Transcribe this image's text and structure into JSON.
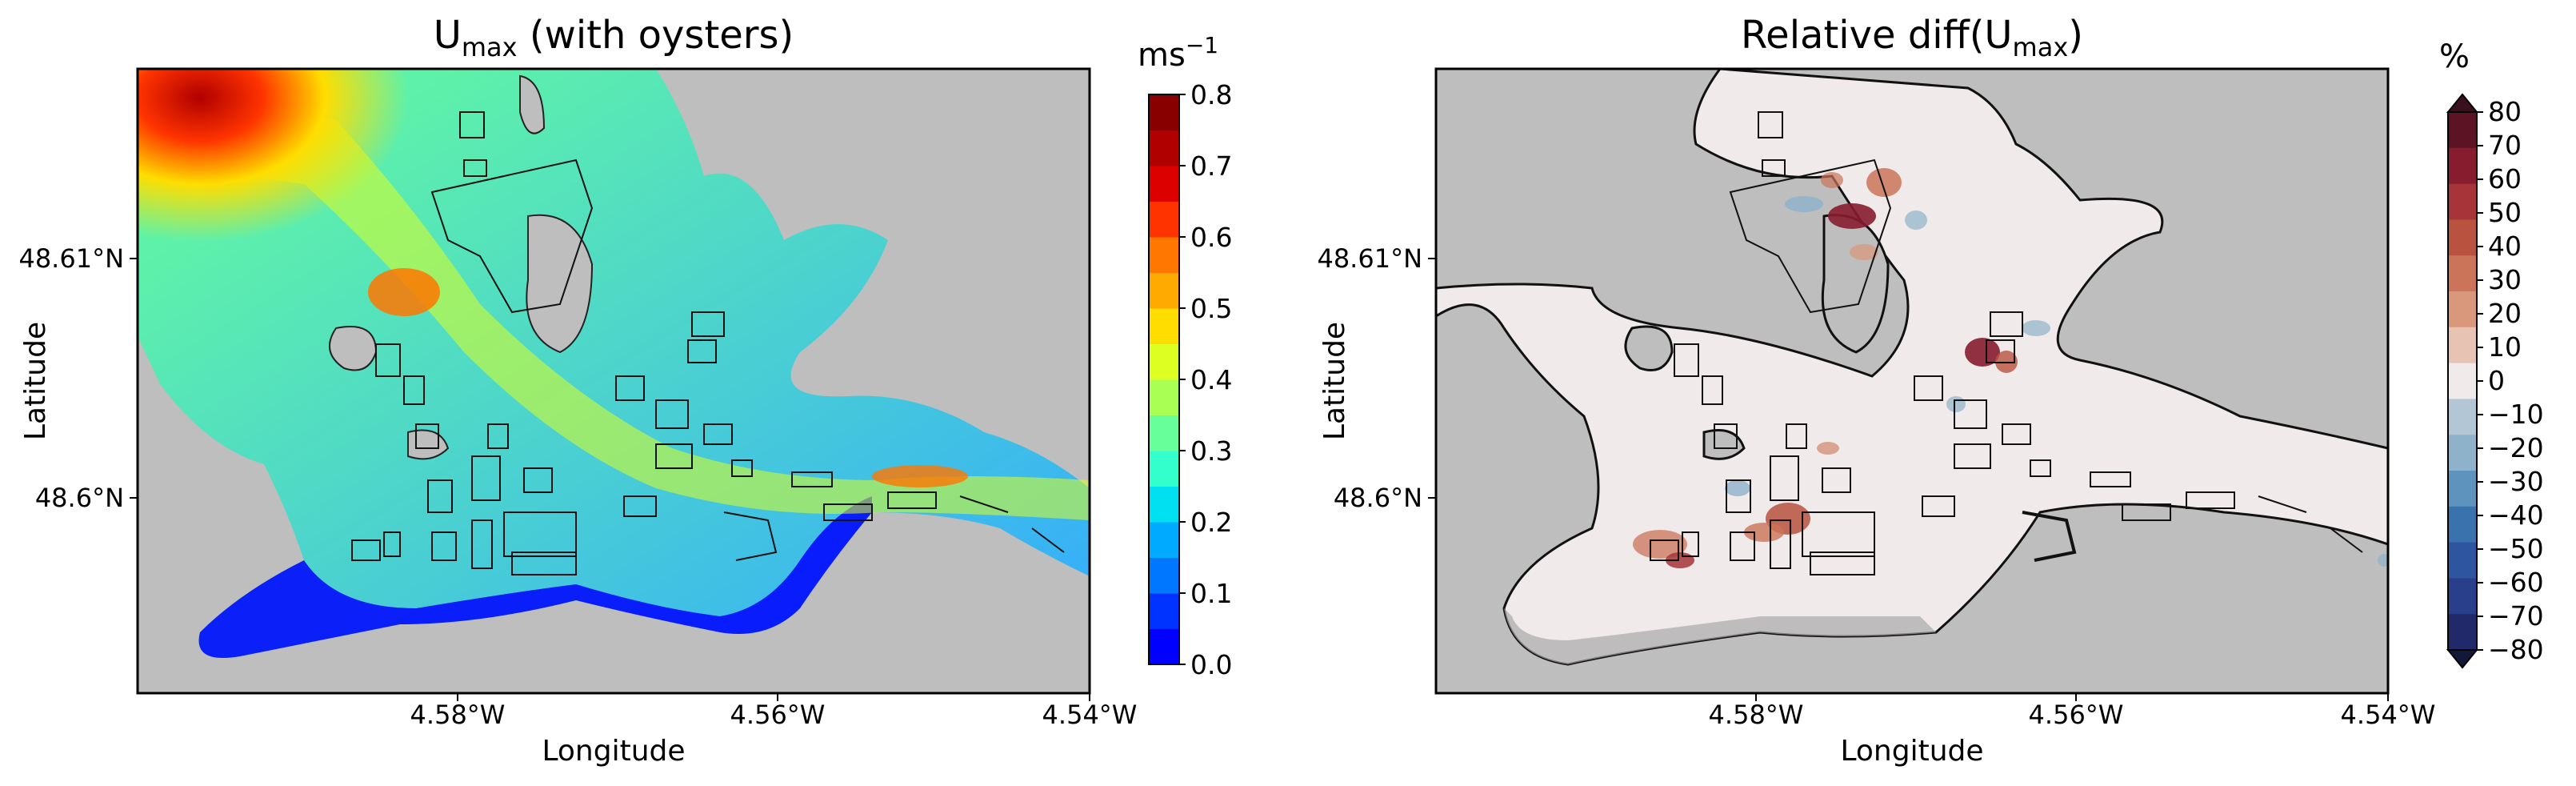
{
  "panels": [
    {
      "title_main": "U",
      "title_sub": "max",
      "title_rest": " (with oysters)",
      "xlabel": "Longitude",
      "ylabel": "Latitude",
      "xticks": [
        "4.58°W",
        "4.56°W",
        "4.54°W"
      ],
      "yticks": [
        "48.61°N",
        "48.6°N"
      ],
      "colorbar": {
        "unit_main": "ms",
        "unit_sup": "−1",
        "ticks": [
          "0.0",
          "0.1",
          "0.2",
          "0.3",
          "0.4",
          "0.5",
          "0.6",
          "0.7",
          "0.8"
        ]
      }
    },
    {
      "title_main": "Relative diff(U",
      "title_sub": "max",
      "title_rest": ")",
      "xlabel": "Longitude",
      "ylabel": "Latitude",
      "xticks": [
        "4.58°W",
        "4.56°W",
        "4.54°W"
      ],
      "yticks": [
        "48.61°N",
        "48.6°N"
      ],
      "colorbar": {
        "unit_main": "%",
        "unit_sup": "",
        "ticks": [
          "80",
          "70",
          "60",
          "50",
          "40",
          "30",
          "20",
          "10",
          "0",
          "−10",
          "−20",
          "−30",
          "−40",
          "−50",
          "−60",
          "−70",
          "−80"
        ]
      }
    }
  ],
  "colors": {
    "land": "#bebebe",
    "jet": [
      "#0000ff",
      "#0033ff",
      "#0077ff",
      "#00aaff",
      "#00e0f0",
      "#33ffcc",
      "#66ff99",
      "#aaff55",
      "#ddff22",
      "#ffdd00",
      "#ffaa00",
      "#ff7700",
      "#ff3300",
      "#dd0000",
      "#b00000",
      "#880000"
    ],
    "diverging": [
      "#3a0f1e",
      "#5c1424",
      "#861c2e",
      "#a63438",
      "#b9523f",
      "#cb7459",
      "#d9977b",
      "#e7c3b4",
      "#f0eaea",
      "#b3c6d6",
      "#8fb2cb",
      "#5e93bd",
      "#3a72ae",
      "#2d55a0",
      "#2a3f8c",
      "#22296b",
      "#121838"
    ],
    "diff_background": "#f0eaea"
  }
}
